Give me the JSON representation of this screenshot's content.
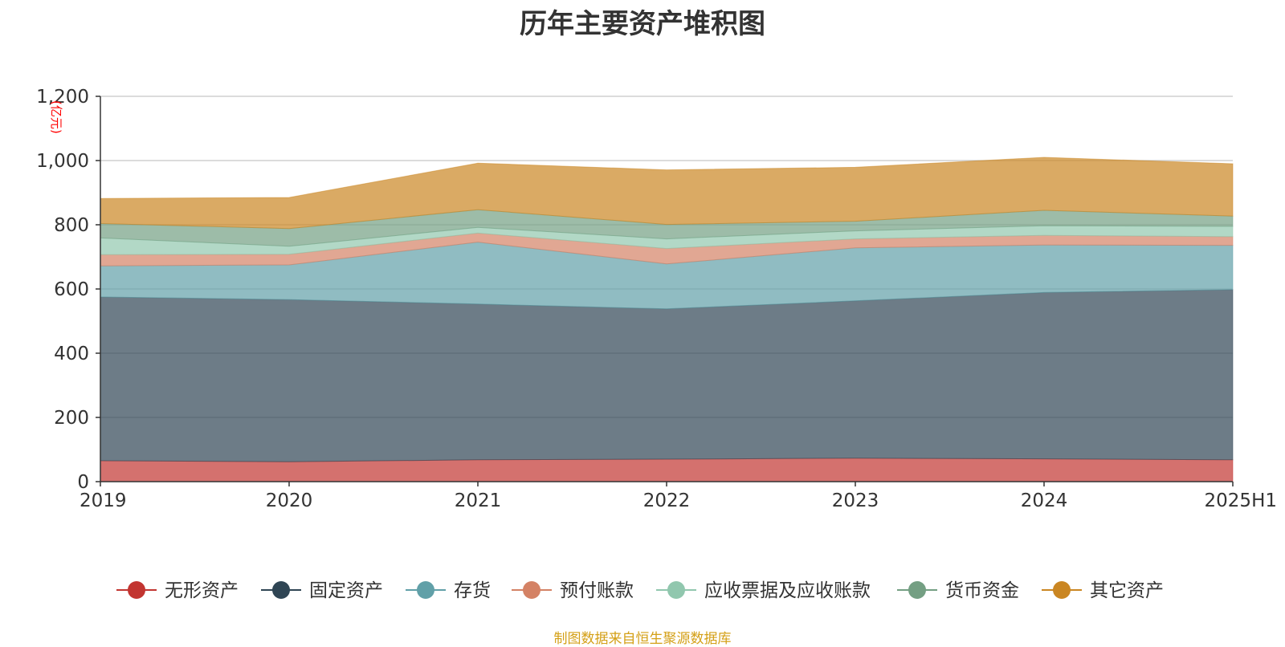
{
  "chart_data": {
    "type": "area",
    "stacked": true,
    "title": "历年主要资产堆积图",
    "ylabel": "(亿元)",
    "ylim": [
      0,
      1200
    ],
    "yticks": [
      0,
      200,
      400,
      600,
      800,
      1000,
      1200
    ],
    "ytick_labels": [
      "0",
      "200",
      "400",
      "600",
      "800",
      "1,000",
      "1,200"
    ],
    "categories": [
      "2019",
      "2020",
      "2021",
      "2022",
      "2023",
      "2024",
      "2025H1"
    ],
    "grid": true,
    "legend_position": "bottom",
    "series": [
      {
        "name": "无形资产",
        "color": "#c23531",
        "values": [
          65,
          62,
          68,
          70,
          73,
          71,
          68
        ]
      },
      {
        "name": "固定资产",
        "color": "#2f4554",
        "values": [
          510,
          505,
          485,
          468,
          490,
          518,
          530
        ]
      },
      {
        "name": "存货",
        "color": "#61a0a8",
        "values": [
          97,
          108,
          193,
          140,
          165,
          148,
          138
        ]
      },
      {
        "name": "预付账款",
        "color": "#d48265",
        "values": [
          35,
          33,
          28,
          48,
          28,
          30,
          27
        ]
      },
      {
        "name": "应收票据及应收账款",
        "color": "#91c7ae",
        "values": [
          52,
          25,
          18,
          30,
          25,
          30,
          32
        ]
      },
      {
        "name": "货币资金",
        "color": "#749f83",
        "values": [
          45,
          55,
          55,
          45,
          30,
          48,
          32
        ]
      },
      {
        "name": "其它资产",
        "color": "#ca8622",
        "values": [
          78,
          97,
          145,
          170,
          168,
          165,
          163
        ]
      }
    ]
  },
  "source_note": "制图数据来自恒生聚源数据库",
  "source_note_color": "#d4a017"
}
